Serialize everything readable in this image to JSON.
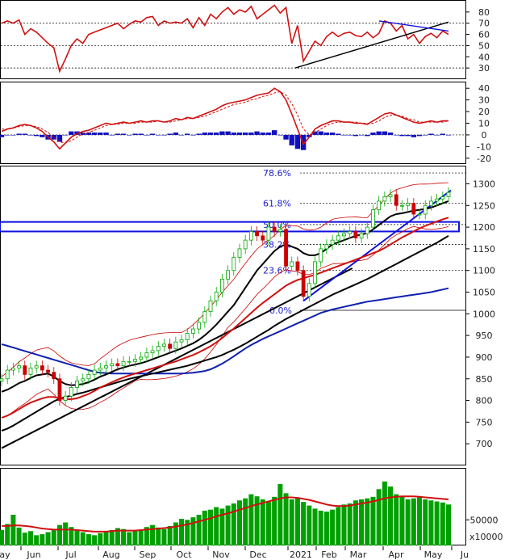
{
  "chart_data": {
    "type": "candlestick",
    "months": [
      "ay",
      "Jun",
      "Jul",
      "Aug",
      "Sep",
      "Oct",
      "Nov",
      "Dec",
      "2021",
      "Feb",
      "Mar",
      "Apr",
      "May",
      "Ju"
    ],
    "volume_unit": "x10000",
    "panels": [
      {
        "name": "rsi",
        "ylim": [
          20,
          90
        ],
        "ticks": [
          "80",
          "70",
          "60",
          "50",
          "40",
          "30"
        ],
        "gridlines": [
          70,
          50,
          30
        ],
        "trendlines": [
          {
            "from": [
              "2021-01-22",
              30
            ],
            "to": [
              "2021-05-28",
              71
            ]
          },
          {
            "from": [
              "2021-04-01",
              72
            ],
            "to": [
              "2021-05-28",
              63
            ]
          }
        ],
        "series": [
          {
            "values": [
              70,
              72,
              70,
              73,
              60,
              65,
              62,
              57,
              52,
              48,
              27,
              38,
              50,
              56,
              52,
              60,
              62,
              64,
              66,
              68,
              70,
              65,
              69,
              72,
              71,
              75,
              76,
              68,
              72,
              70,
              71,
              70,
              74,
              66,
              75,
              68,
              78,
              74,
              80,
              84,
              78,
              82,
              80,
              85,
              74,
              78,
              82,
              86,
              79,
              84,
              52,
              68,
              36,
              45,
              54,
              50,
              58,
              62,
              58,
              61,
              62,
              59,
              58,
              62,
              57,
              61,
              72,
              70,
              63,
              68,
              56,
              60,
              52,
              58,
              61,
              57,
              63,
              60
            ]
          }
        ]
      },
      {
        "name": "macd",
        "ylim": [
          -25,
          45
        ],
        "ticks": [
          "40",
          "30",
          "20",
          "10",
          "0",
          "-10",
          "-20"
        ],
        "gridlines": [
          0
        ],
        "series": [
          {
            "name": "macd",
            "values": [
              3,
              5,
              6,
              8,
              9,
              8,
              6,
              3,
              -2,
              -6,
              -12,
              -7,
              -2,
              1,
              3,
              4,
              6,
              8,
              10,
              9,
              10,
              11,
              10,
              11,
              12,
              11,
              12,
              12,
              11,
              12,
              14,
              13,
              15,
              14,
              16,
              18,
              20,
              22,
              25,
              27,
              28,
              29,
              30,
              32,
              34,
              35,
              36,
              40,
              37,
              30,
              18,
              5,
              -8,
              -2,
              5,
              8,
              10,
              12,
              12,
              11,
              11,
              10,
              10,
              9,
              12,
              15,
              18,
              19,
              17,
              15,
              13,
              11,
              10,
              11,
              12,
              11,
              12,
              12
            ]
          },
          {
            "name": "signal",
            "values": [
              5,
              5,
              6,
              7,
              8,
              8,
              7,
              5,
              2,
              -2,
              -6,
              -7,
              -5,
              -2,
              1,
              2,
              4,
              6,
              8,
              9,
              9,
              10,
              10,
              10,
              11,
              11,
              11,
              12,
              11,
              11,
              12,
              13,
              14,
              14,
              15,
              16,
              18,
              20,
              22,
              24,
              26,
              27,
              28,
              30,
              31,
              33,
              34,
              36,
              37,
              34,
              27,
              17,
              5,
              0,
              2,
              5,
              8,
              10,
              11,
              11,
              11,
              11,
              10,
              10,
              10,
              12,
              15,
              17,
              17,
              16,
              14,
              13,
              11,
              11,
              11,
              11,
              11,
              12
            ]
          }
        ],
        "histogram": [
          -2,
          0,
          0,
          1,
          1,
          0,
          -1,
          -2,
          -4,
          -4,
          -6,
          0,
          3,
          3,
          2,
          2,
          2,
          2,
          2,
          0,
          1,
          1,
          0,
          1,
          1,
          0,
          1,
          0,
          0,
          1,
          2,
          0,
          1,
          0,
          1,
          2,
          2,
          2,
          3,
          3,
          2,
          2,
          2,
          2,
          3,
          2,
          2,
          4,
          0,
          -4,
          -9,
          -12,
          -13,
          -2,
          3,
          3,
          2,
          2,
          1,
          0,
          0,
          -1,
          0,
          -1,
          2,
          3,
          3,
          2,
          0,
          -1,
          -1,
          -2,
          -1,
          0,
          1,
          0,
          1,
          0
        ]
      },
      {
        "name": "price",
        "ylim": [
          650,
          1340
        ],
        "ticks": [
          "1300",
          "1250",
          "1200",
          "1150",
          "1100",
          "1050",
          "1000",
          "950",
          "900",
          "850",
          "800",
          "750",
          "700"
        ],
        "fibonacci": [
          {
            "label": "78.6%",
            "value": 1325
          },
          {
            "label": "61.8%",
            "value": 1255
          },
          {
            "label": "50.0%",
            "value": 1206
          },
          {
            "label": "38.2%",
            "value": 1160
          },
          {
            "label": "23.6%",
            "value": 1100
          },
          {
            "label": "0.0%",
            "value": 1008
          }
        ],
        "resistance_zone": [
          1190,
          1212
        ],
        "candles_close": [
          850,
          870,
          875,
          880,
          860,
          875,
          880,
          870,
          865,
          850,
          800,
          810,
          830,
          845,
          850,
          860,
          870,
          875,
          880,
          885,
          880,
          890,
          890,
          895,
          900,
          910,
          915,
          925,
          930,
          920,
          935,
          940,
          955,
          965,
          980,
          1005,
          1030,
          1050,
          1080,
          1100,
          1130,
          1150,
          1170,
          1190,
          1180,
          1170,
          1200,
          1190,
          1195,
          1110,
          1120,
          1100,
          1040,
          1070,
          1120,
          1150,
          1160,
          1170,
          1180,
          1185,
          1190,
          1175,
          1185,
          1200,
          1240,
          1260,
          1270,
          1275,
          1250,
          1250,
          1255,
          1230,
          1230,
          1250,
          1260,
          1265,
          1270,
          1280
        ],
        "moving_averages": [
          {
            "name": "ma20",
            "values": [
              820,
              825,
              832,
              840,
              845,
              852,
              858,
              860,
              862,
              855,
              845,
              838,
              835,
              836,
              838,
              842,
              848,
              855,
              860,
              866,
              872,
              876,
              880,
              883,
              886,
              890,
              895,
              900,
              905,
              910,
              915,
              920,
              926,
              932,
              940,
              950,
              962,
              975,
              990,
              1005,
              1020,
              1040,
              1060,
              1080,
              1100,
              1115,
              1130,
              1145,
              1155,
              1160,
              1155,
              1150,
              1140,
              1135,
              1135,
              1140,
              1150,
              1160,
              1165,
              1170,
              1175,
              1180,
              1183,
              1186,
              1195,
              1205,
              1215,
              1225,
              1230,
              1232,
              1235,
              1238,
              1240,
              1242,
              1245,
              1250,
              1255,
              1260
            ]
          },
          {
            "name": "ma50",
            "values": [
              760,
              765,
              772,
              780,
              788,
              795,
              800,
              805,
              808,
              808,
              805,
              803,
              803,
              805,
              810,
              815,
              822,
              830,
              836,
              842,
              848,
              853,
              858,
              862,
              866,
              870,
              874,
              878,
              882,
              886,
              890,
              895,
              900,
              905,
              911,
              918,
              925,
              934,
              944,
              955,
              966,
              978,
              990,
              1002,
              1014,
              1025,
              1035,
              1045,
              1055,
              1065,
              1072,
              1078,
              1082,
              1086,
              1090,
              1095,
              1100,
              1105,
              1110,
              1115,
              1120,
              1125,
              1130,
              1135,
              1140,
              1145,
              1152,
              1160,
              1168,
              1176,
              1183,
              1190,
              1197,
              1203,
              1208,
              1213,
              1218,
              1222
            ]
          },
          {
            "name": "ma100",
            "values": [
              730,
              735,
              742,
              750,
              758,
              766,
              774,
              782,
              790,
              798,
              804,
              808,
              811,
              815,
              818,
              822,
              826,
              830,
              834,
              838,
              842,
              846,
              850,
              853,
              856,
              859,
              862,
              865,
              868,
              871,
              874,
              877,
              880,
              884,
              888,
              892,
              896,
              900,
              905,
              911,
              917,
              924,
              931,
              939,
              947,
              955,
              963,
              972,
              980,
              988,
              995,
              1002,
              1009,
              1016,
              1023,
              1030,
              1037,
              1044,
              1050,
              1056,
              1062,
              1068,
              1074,
              1080,
              1087,
              1094,
              1101,
              1108,
              1115,
              1122,
              1129,
              1136,
              1143,
              1150,
              1157,
              1164,
              1172,
              1180
            ]
          },
          {
            "name": "ma200",
            "values": [
              930,
              926,
              922,
              918,
              914,
              910,
              906,
              902,
              898,
              894,
              890,
              886,
              882,
              878,
              874,
              870,
              866,
              864,
              863,
              862,
              862,
              862,
              862,
              862,
              862,
              862,
              862,
              862,
              862,
              862,
              862,
              862,
              863,
              864,
              866,
              868,
              872,
              878,
              885,
              893,
              902,
              911,
              920,
              928,
              935,
              942,
              948,
              954,
              960,
              966,
              972,
              978,
              984,
              990,
              996,
              1002,
              1006,
              1010,
              1013,
              1016,
              1019,
              1022,
              1025,
              1028,
              1030,
              1032,
              1034,
              1036,
              1038,
              1040,
              1042,
              1044,
              1046,
              1048,
              1050,
              1053,
              1056,
              1059
            ]
          }
        ]
      },
      {
        "name": "volume",
        "ylim": [
          0,
          150000
        ],
        "ticks": [
          "50000"
        ],
        "values": [
          30000,
          42000,
          60000,
          35000,
          25000,
          28000,
          20000,
          22000,
          26000,
          30000,
          40000,
          45000,
          36000,
          30000,
          26000,
          22000,
          20000,
          24000,
          26000,
          30000,
          34000,
          32000,
          26000,
          28000,
          30000,
          36000,
          40000,
          35000,
          32000,
          38000,
          45000,
          52000,
          50000,
          55000,
          60000,
          68000,
          70000,
          75000,
          72000,
          78000,
          82000,
          88000,
          92000,
          100000,
          96000,
          90000,
          85000,
          95000,
          120000,
          102000,
          90000,
          92000,
          85000,
          78000,
          72000,
          68000,
          66000,
          70000,
          75000,
          80000,
          82000,
          88000,
          90000,
          92000,
          95000,
          110000,
          125000,
          115000,
          100000,
          95000,
          90000,
          92000,
          94000,
          90000,
          88000,
          86000,
          84000,
          80000
        ],
        "ma20": [
          38000,
          38000,
          39000,
          39000,
          38000,
          37000,
          35000,
          33000,
          32000,
          31000,
          31000,
          31000,
          31000,
          30000,
          29000,
          28000,
          27000,
          27000,
          27000,
          28000,
          29000,
          29000,
          29000,
          29000,
          30000,
          31000,
          32000,
          33000,
          34000,
          35000,
          37000,
          39000,
          41000,
          44000,
          47000,
          50000,
          53000,
          57000,
          60000,
          63000,
          66000,
          70000,
          73000,
          77000,
          80000,
          83000,
          86000,
          89000,
          92000,
          94000,
          94000,
          93000,
          91000,
          89000,
          86000,
          83000,
          80000,
          78000,
          77000,
          77000,
          78000,
          80000,
          82000,
          84000,
          86000,
          89000,
          92000,
          94000,
          95000,
          96000,
          96000,
          96000,
          95000,
          94000,
          93000,
          92000,
          91000,
          90000
        ]
      }
    ]
  },
  "colors": {
    "rsi": "#d01010",
    "macd": "#d01010",
    "histogram": "#1010c0",
    "ma20": "#000000",
    "ma50": "#d01010",
    "ma100": "#000000",
    "ma200": "#1020b0",
    "bollinger": "#cc0000",
    "up": "#00aa00",
    "down": "#cc0000",
    "volume": "#00a000",
    "volume_ma": "#d01010",
    "fib": "#2020d0",
    "trend_blue": "#1010e0"
  }
}
